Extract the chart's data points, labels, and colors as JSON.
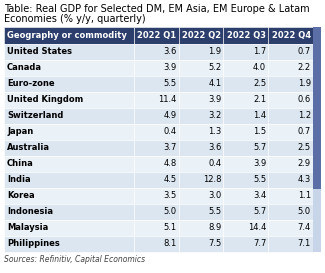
{
  "title_line1": "Table: Real GDP for Selected DM, EM Asia, EM Europe & Latam",
  "title_line2": "Economies (% y/y, quarterly)",
  "columns": [
    "Geography or commodity",
    "2022 Q1",
    "2022 Q2",
    "2022 Q3",
    "2022 Q4"
  ],
  "rows": [
    [
      "United States",
      "3.6",
      "1.9",
      "1.7",
      "0.7"
    ],
    [
      "Canada",
      "3.9",
      "5.2",
      "4.0",
      "2.2"
    ],
    [
      "Euro-zone",
      "5.5",
      "4.1",
      "2.5",
      "1.9"
    ],
    [
      "United Kingdom",
      "11.4",
      "3.9",
      "2.1",
      "0.6"
    ],
    [
      "Switzerland",
      "4.9",
      "3.2",
      "1.4",
      "1.2"
    ],
    [
      "Japan",
      "0.4",
      "1.3",
      "1.5",
      "0.7"
    ],
    [
      "Australia",
      "3.7",
      "3.6",
      "5.7",
      "2.5"
    ],
    [
      "China",
      "4.8",
      "0.4",
      "3.9",
      "2.9"
    ],
    [
      "India",
      "4.5",
      "12.8",
      "5.5",
      "4.3"
    ],
    [
      "Korea",
      "3.5",
      "3.0",
      "3.4",
      "1.1"
    ],
    [
      "Indonesia",
      "5.0",
      "5.5",
      "5.7",
      "5.0"
    ],
    [
      "Malaysia",
      "5.1",
      "8.9",
      "14.4",
      "7.4"
    ],
    [
      "Philippines",
      "8.1",
      "7.5",
      "7.7",
      "7.1"
    ]
  ],
  "source": "Sources: Refinitiv, Capital Economics",
  "header_bg": "#2c3e6b",
  "header_text": "#ffffff",
  "row_bg_even": "#dce6f1",
  "row_bg_odd": "#eaf2f8",
  "row_text": "#000000",
  "scrollbar_bg": "#c8d4e8",
  "scrollbar_fg": "#5b6fa6",
  "title_fontsize": 7.0,
  "header_fontsize": 6.0,
  "cell_fontsize": 6.0,
  "source_fontsize": 5.5
}
